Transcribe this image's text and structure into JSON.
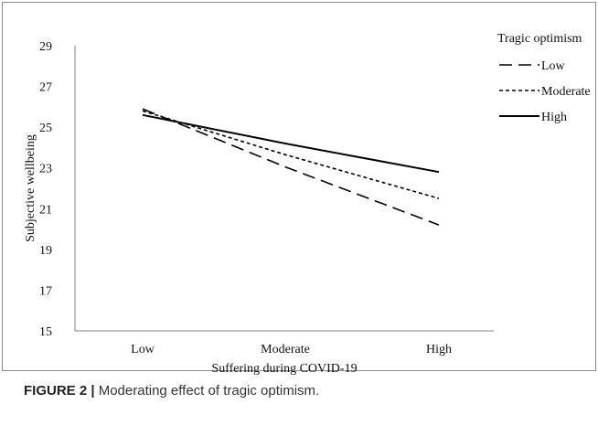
{
  "caption": {
    "label": "FIGURE 2 |",
    "text": "Moderating effect of tragic optimism."
  },
  "chart_data": {
    "type": "line",
    "title": "",
    "xlabel": "Suffering during COVID-19",
    "ylabel": "Subjective wellbeing",
    "categories": [
      "Low",
      "Moderate",
      "High"
    ],
    "ylim": [
      15,
      29
    ],
    "yticks": [
      15,
      17,
      19,
      21,
      23,
      25,
      27,
      29
    ],
    "grid": false,
    "legend": {
      "title": "Tragic optimism",
      "placement": "top-right"
    },
    "series": [
      {
        "name": "Low",
        "style": "long-dash",
        "values": [
          25.9,
          23.05,
          20.2
        ]
      },
      {
        "name": "Moderate",
        "style": "short-dash",
        "values": [
          25.8,
          23.65,
          21.5
        ]
      },
      {
        "name": "High",
        "style": "solid",
        "values": [
          25.6,
          24.2,
          22.8
        ]
      }
    ],
    "colors": {
      "line": "#000000",
      "frame": "#7f7f7f"
    }
  }
}
